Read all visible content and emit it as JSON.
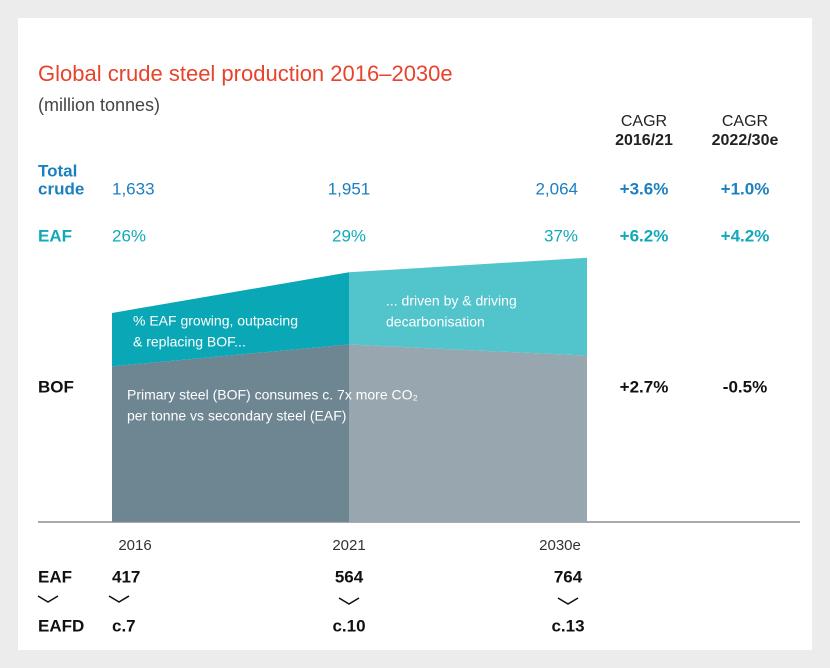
{
  "chart_data": {
    "type": "stacked_area",
    "title": "Global crude steel production 2016–2030e",
    "subtitle": "(million tonnes)",
    "categories": [
      "2016",
      "2021",
      "2030e"
    ],
    "ylim": [
      0,
      2500
    ],
    "series": [
      {
        "name": "BOF",
        "color": "#6e8592",
        "forecast_color": "#97a6af",
        "values": [
          1216,
          1387,
          1300
        ]
      },
      {
        "name": "EAF",
        "color": "#0aa8b6",
        "forecast_color": "#52c4cc",
        "values": [
          417,
          564,
          764
        ]
      }
    ],
    "table": {
      "headers": [
        {
          "line1": "CAGR",
          "line2": "2016/21"
        },
        {
          "line1": "CAGR",
          "line2": "2022/30e"
        }
      ],
      "total": {
        "label": [
          "Total",
          "crude"
        ],
        "values": [
          "1,633",
          "1,951",
          "2,064"
        ],
        "cagr": [
          "+3.6%",
          "+1.0%"
        ]
      },
      "eaf": {
        "label": "EAF",
        "values": [
          "26%",
          "29%",
          "37%"
        ],
        "cagr": [
          "+6.2%",
          "+4.2%"
        ]
      },
      "bof": {
        "label": "BOF",
        "cagr": [
          "+2.7%",
          "-0.5%"
        ]
      }
    },
    "annotations": [
      [
        "% EAF growing, outpacing",
        "& replacing BOF..."
      ],
      [
        "... driven by & driving",
        "decarbonisation"
      ],
      [
        "Primary steel (BOF) consumes c. 7x more CO₂",
        "per tonne vs secondary steel (EAF)"
      ]
    ],
    "bottom": {
      "eaf_label": "EAF",
      "eafd_label": "EAFD",
      "eafd_values": [
        "c.7",
        "c.10",
        "c.13"
      ]
    }
  }
}
